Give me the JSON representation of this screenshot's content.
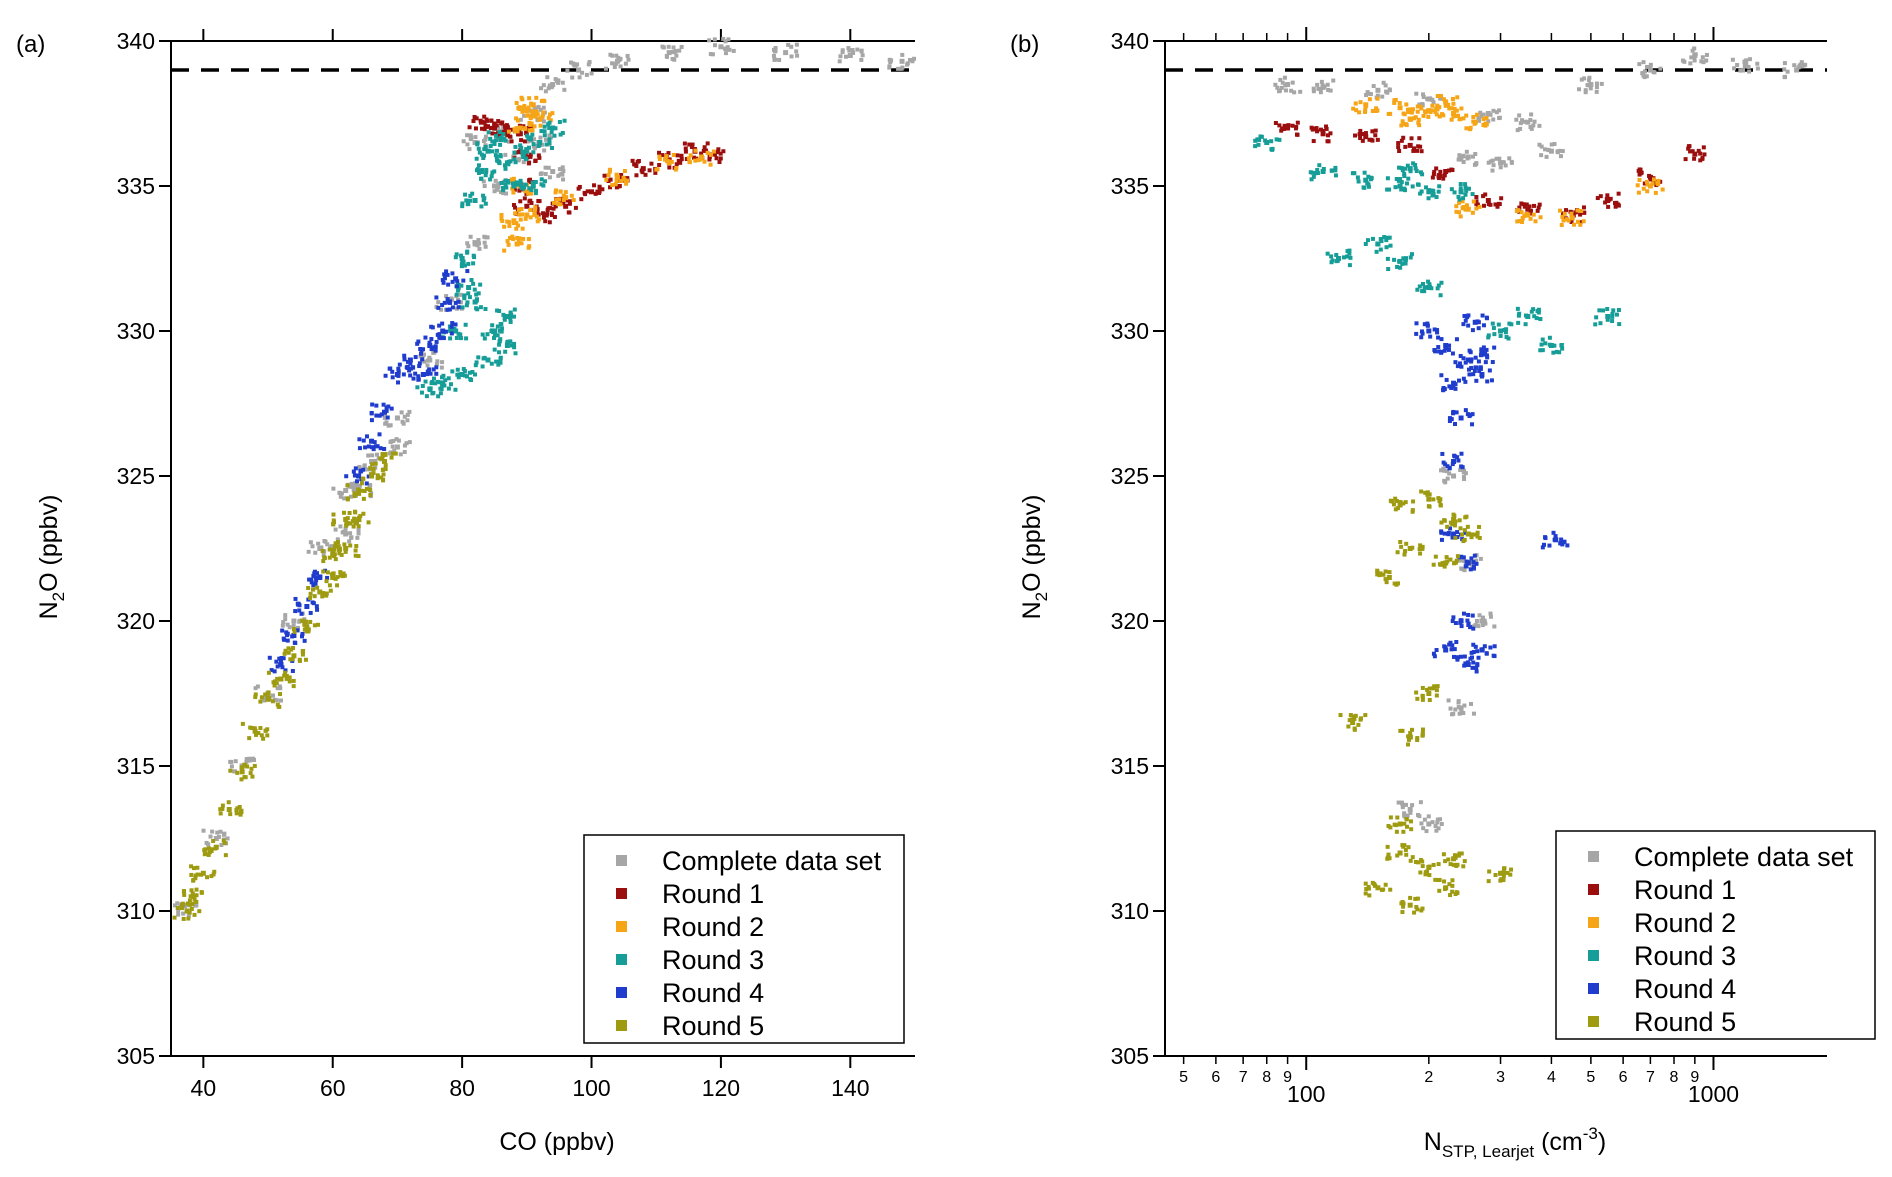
{
  "chart_data": [
    {
      "panel_label": "(a)",
      "type": "scatter",
      "xlabel": "CO (ppbv)",
      "ylabel_main": "N",
      "ylabel_sub": "2",
      "ylabel_rest": "O (ppbv)",
      "x_scale": "linear",
      "xlim": [
        35,
        150
      ],
      "ylim": [
        305,
        340
      ],
      "x_ticks": [
        40,
        60,
        80,
        100,
        120,
        140
      ],
      "y_ticks": [
        305,
        310,
        315,
        320,
        325,
        330,
        335,
        340
      ],
      "reference_line": {
        "y": 339,
        "style": "dashed"
      },
      "legend_position": "bottom-right",
      "series": [
        {
          "name": "Complete data set",
          "color": "#a6a6a6",
          "points": [
            [
              37.5,
              310
            ],
            [
              42,
              312.5
            ],
            [
              46,
              315
            ],
            [
              50,
              317.5
            ],
            [
              54,
              320
            ],
            [
              58,
              322.5
            ],
            [
              62,
              324.5
            ],
            [
              66,
              325.5
            ],
            [
              70,
              327
            ],
            [
              75,
              329
            ],
            [
              78,
              331
            ],
            [
              82,
              333
            ],
            [
              85,
              335
            ],
            [
              88,
              336
            ],
            [
              91,
              337.5
            ],
            [
              94,
              338.5
            ],
            [
              98,
              339
            ],
            [
              104,
              339.3
            ],
            [
              112,
              339.6
            ],
            [
              120,
              339.8
            ],
            [
              130,
              339.6
            ],
            [
              140,
              339.5
            ],
            [
              148,
              339.3
            ],
            [
              86,
              336.8
            ],
            [
              82,
              336.5
            ],
            [
              92,
              336.5
            ],
            [
              94,
              335.5
            ],
            [
              62,
              323
            ],
            [
              64,
              324.5
            ],
            [
              70,
              326
            ]
          ]
        },
        {
          "name": "Round 1",
          "color": "#9b0e0e",
          "points": [
            [
              83,
              337.2
            ],
            [
              85,
              337
            ],
            [
              87,
              337
            ],
            [
              89,
              336.8
            ],
            [
              90,
              336
            ],
            [
              89,
              335
            ],
            [
              90,
              334.3
            ],
            [
              93,
              334
            ],
            [
              96,
              334.3
            ],
            [
              100,
              334.8
            ],
            [
              104,
              335.2
            ],
            [
              108,
              335.6
            ],
            [
              112,
              335.9
            ],
            [
              116,
              336.2
            ],
            [
              119,
              336.1
            ]
          ]
        },
        {
          "name": "Round 2",
          "color": "#f5a516",
          "points": [
            [
              89,
              337
            ],
            [
              90,
              337.6
            ],
            [
              91,
              337.8
            ],
            [
              92,
              337.3
            ],
            [
              89,
              335
            ],
            [
              88,
              333.8
            ],
            [
              88.5,
              333
            ],
            [
              90,
              334
            ],
            [
              96,
              334.6
            ],
            [
              104,
              335.3
            ],
            [
              112,
              335.8
            ],
            [
              117,
              336
            ]
          ]
        },
        {
          "name": "Round 3",
          "color": "#169d97",
          "points": [
            [
              82,
              334.5
            ],
            [
              83,
              335.5
            ],
            [
              84,
              336.2
            ],
            [
              86,
              336.6
            ],
            [
              87,
              335.8
            ],
            [
              88,
              335
            ],
            [
              90,
              336.2
            ],
            [
              92,
              336.5
            ],
            [
              94,
              337
            ],
            [
              91,
              335
            ],
            [
              81,
              331.5
            ],
            [
              80,
              332.5
            ],
            [
              79,
              330
            ],
            [
              82,
              331
            ],
            [
              85,
              330
            ],
            [
              87,
              330.5
            ],
            [
              87,
              329.5
            ],
            [
              84,
              329
            ],
            [
              80,
              328.5
            ],
            [
              77,
              328.2
            ],
            [
              75,
              328
            ]
          ]
        },
        {
          "name": "Round 4",
          "color": "#1f3ccc",
          "points": [
            [
              52,
              318.5
            ],
            [
              54,
              319.5
            ],
            [
              56,
              320.5
            ],
            [
              58,
              321.5
            ],
            [
              64,
              325
            ],
            [
              66,
              326.2
            ],
            [
              68,
              327.2
            ],
            [
              70,
              328.5
            ],
            [
              72,
              329
            ],
            [
              74,
              328.5
            ],
            [
              75,
              329.5
            ],
            [
              77,
              330
            ],
            [
              78,
              331
            ],
            [
              79,
              331.8
            ]
          ]
        },
        {
          "name": "Round 5",
          "color": "#9e9b10",
          "points": [
            [
              37.5,
              310
            ],
            [
              38.5,
              310.5
            ],
            [
              40,
              311.3
            ],
            [
              42,
              312.2
            ],
            [
              44,
              313.5
            ],
            [
              46,
              314.8
            ],
            [
              48,
              316.2
            ],
            [
              50,
              317.3
            ],
            [
              52,
              318
            ],
            [
              54,
              318.8
            ],
            [
              56,
              319.8
            ],
            [
              58,
              321
            ],
            [
              60,
              322.3
            ],
            [
              62,
              323.5
            ],
            [
              64,
              324.4
            ],
            [
              66,
              325
            ],
            [
              68,
              325.5
            ],
            [
              60,
              321.5
            ],
            [
              62,
              322.5
            ],
            [
              64,
              323.5
            ]
          ]
        }
      ]
    },
    {
      "panel_label": "(b)",
      "type": "scatter",
      "xlabel_main": "N",
      "xlabel_sub": "STP, Learjet",
      "xlabel_unit_pre": " (cm",
      "xlabel_unit_sup": "-3",
      "xlabel_unit_post": ")",
      "ylabel_main": "N",
      "ylabel_sub": "2",
      "ylabel_rest": "O (ppbv)",
      "x_scale": "log",
      "xlim": [
        45,
        1900
      ],
      "ylim": [
        305,
        340
      ],
      "x_major_ticks": [
        {
          "value": 100,
          "label": "100"
        },
        {
          "value": 1000,
          "label": "1000"
        }
      ],
      "x_minor_ticks": [
        {
          "value": 50,
          "label": "5"
        },
        {
          "value": 60,
          "label": "6"
        },
        {
          "value": 70,
          "label": "7"
        },
        {
          "value": 80,
          "label": "8"
        },
        {
          "value": 90,
          "label": "9"
        },
        {
          "value": 200,
          "label": "2"
        },
        {
          "value": 300,
          "label": "3"
        },
        {
          "value": 400,
          "label": "4"
        },
        {
          "value": 500,
          "label": "5"
        },
        {
          "value": 600,
          "label": "6"
        },
        {
          "value": 700,
          "label": "7"
        },
        {
          "value": 800,
          "label": "8"
        },
        {
          "value": 900,
          "label": "9"
        }
      ],
      "y_ticks": [
        305,
        310,
        315,
        320,
        325,
        330,
        335,
        340
      ],
      "reference_line": {
        "y": 339,
        "style": "dashed"
      },
      "legend_position": "bottom-right",
      "series": [
        {
          "name": "Complete data set",
          "color": "#a6a6a6",
          "points": [
            [
              90,
              338.5
            ],
            [
              110,
              338.4
            ],
            [
              150,
              338.3
            ],
            [
              200,
              338
            ],
            [
              280,
              337.5
            ],
            [
              350,
              337.2
            ],
            [
              500,
              338.5
            ],
            [
              700,
              339
            ],
            [
              900,
              339.5
            ],
            [
              1200,
              339.2
            ],
            [
              1600,
              339
            ],
            [
              250,
              336
            ],
            [
              300,
              335.8
            ],
            [
              400,
              336.2
            ],
            [
              250,
              322
            ],
            [
              270,
              320
            ],
            [
              240,
              317
            ],
            [
              230,
              325
            ],
            [
              180,
              313.5
            ],
            [
              200,
              313
            ]
          ]
        },
        {
          "name": "Round 1",
          "color": "#9b0e0e",
          "points": [
            [
              90,
              337
            ],
            [
              110,
              336.8
            ],
            [
              140,
              336.7
            ],
            [
              180,
              336.4
            ],
            [
              220,
              335.5
            ],
            [
              280,
              334.5
            ],
            [
              350,
              334.2
            ],
            [
              450,
              334
            ],
            [
              550,
              334.5
            ],
            [
              700,
              335.3
            ],
            [
              900,
              336.1
            ]
          ]
        },
        {
          "name": "Round 2",
          "color": "#f5a516",
          "points": [
            [
              140,
              337.8
            ],
            [
              170,
              337.7
            ],
            [
              200,
              337.6
            ],
            [
              230,
              337.5
            ],
            [
              260,
              337.2
            ],
            [
              180,
              337.3
            ],
            [
              220,
              337.9
            ],
            [
              250,
              334.2
            ],
            [
              350,
              334
            ],
            [
              450,
              333.9
            ],
            [
              700,
              335
            ]
          ]
        },
        {
          "name": "Round 3",
          "color": "#169d97",
          "points": [
            [
              80,
              336.5
            ],
            [
              110,
              335.5
            ],
            [
              140,
              335.2
            ],
            [
              170,
              335
            ],
            [
              200,
              334.8
            ],
            [
              240,
              334.8
            ],
            [
              180,
              335.6
            ],
            [
              150,
              333
            ],
            [
              170,
              332.4
            ],
            [
              200,
              331.5
            ],
            [
              300,
              330
            ],
            [
              350,
              330.5
            ],
            [
              400,
              329.5
            ],
            [
              550,
              330.5
            ],
            [
              120,
              332.5
            ]
          ]
        },
        {
          "name": "Round 4",
          "color": "#1f3ccc",
          "points": [
            [
              220,
              329.5
            ],
            [
              250,
              329
            ],
            [
              270,
              329.2
            ],
            [
              230,
              328.2
            ],
            [
              270,
              328.5
            ],
            [
              200,
              330
            ],
            [
              260,
              330.3
            ],
            [
              240,
              327
            ],
            [
              230,
              325.5
            ],
            [
              230,
              323
            ],
            [
              250,
              322
            ],
            [
              240,
              320
            ],
            [
              220,
              319
            ],
            [
              270,
              319
            ],
            [
              250,
              318.5
            ],
            [
              410,
              322.8
            ]
          ]
        },
        {
          "name": "Round 5",
          "color": "#9e9b10",
          "points": [
            [
              170,
              324
            ],
            [
              200,
              324.2
            ],
            [
              230,
              323.5
            ],
            [
              180,
              322.5
            ],
            [
              220,
              322
            ],
            [
              160,
              321.5
            ],
            [
              250,
              323
            ],
            [
              200,
              317.5
            ],
            [
              180,
              316
            ],
            [
              130,
              316.5
            ],
            [
              170,
              312
            ],
            [
              200,
              311.5
            ],
            [
              230,
              311.8
            ],
            [
              150,
              310.8
            ],
            [
              180,
              310.2
            ],
            [
              220,
              310.8
            ],
            [
              300,
              311.3
            ],
            [
              170,
              313
            ]
          ]
        }
      ]
    }
  ]
}
